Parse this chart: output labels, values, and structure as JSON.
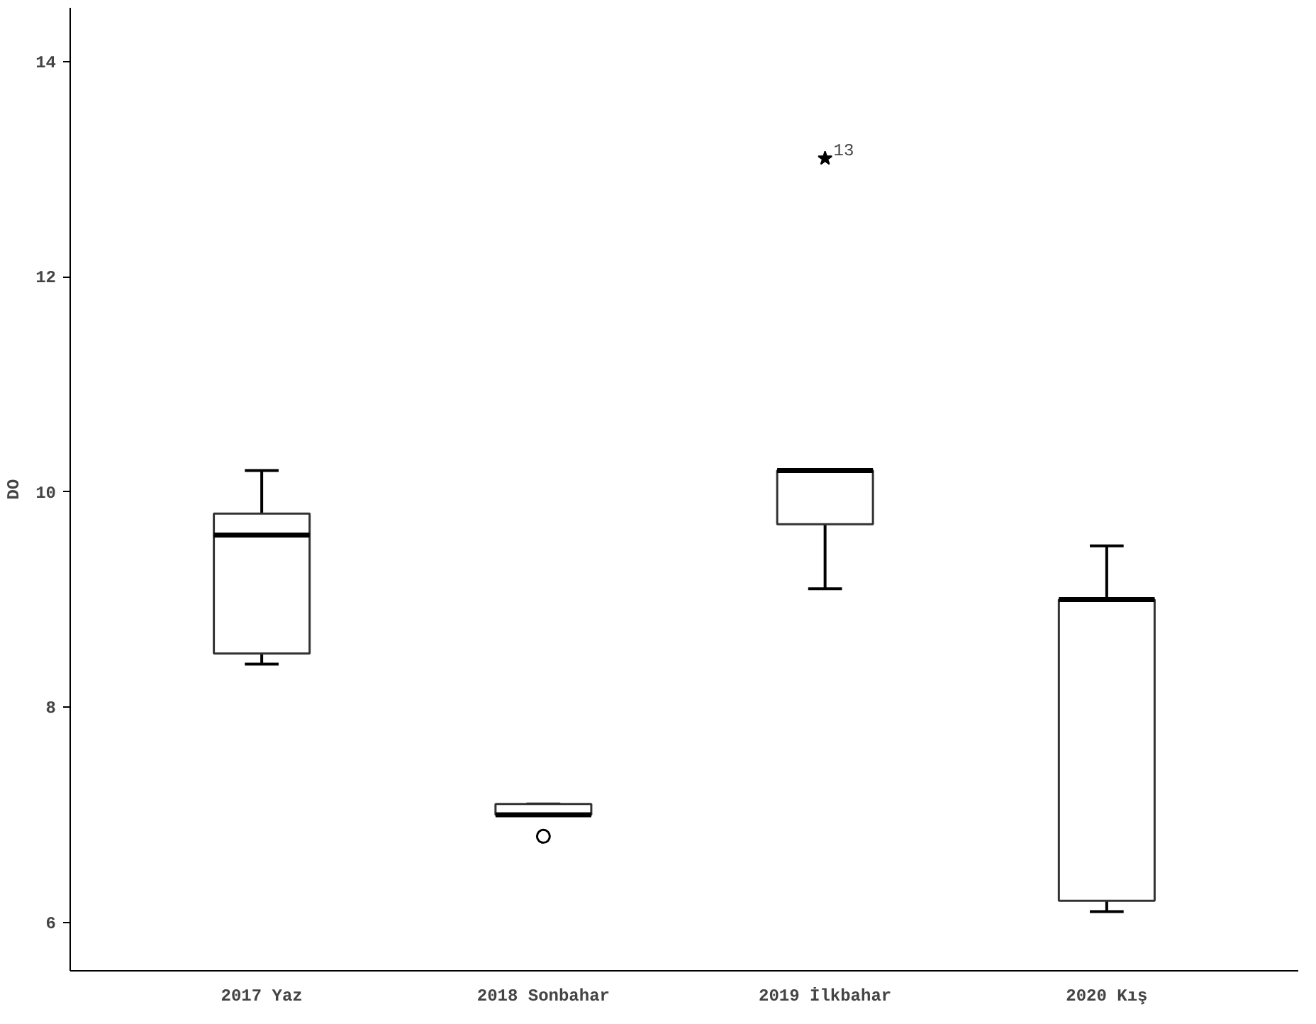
{
  "chart_data": {
    "type": "box",
    "ylabel": "DO",
    "categories": [
      "2017 Yaz",
      "2018 Sonbahar",
      "2019 İlkbahar",
      "2020 Kış"
    ],
    "boxes": [
      {
        "low": 8.4,
        "q1": 8.5,
        "median": 9.6,
        "q3": 9.8,
        "high": 10.2
      },
      {
        "low": 7.0,
        "q1": 7.0,
        "median": 7.0,
        "q3": 7.1,
        "high": 7.1,
        "outliers": [
          6.8
        ]
      },
      {
        "low": 9.1,
        "q1": 9.7,
        "median": 10.2,
        "q3": 10.2,
        "high": 10.2,
        "outliers": [
          13.1
        ]
      },
      {
        "low": 6.1,
        "q1": 6.2,
        "median": 9.0,
        "q3": 9.0,
        "high": 9.5
      }
    ],
    "ylim": [
      5.55,
      14.5
    ],
    "yticks": [
      6,
      8,
      10,
      12,
      14
    ],
    "grid": false,
    "annotations": [
      "13"
    ]
  }
}
